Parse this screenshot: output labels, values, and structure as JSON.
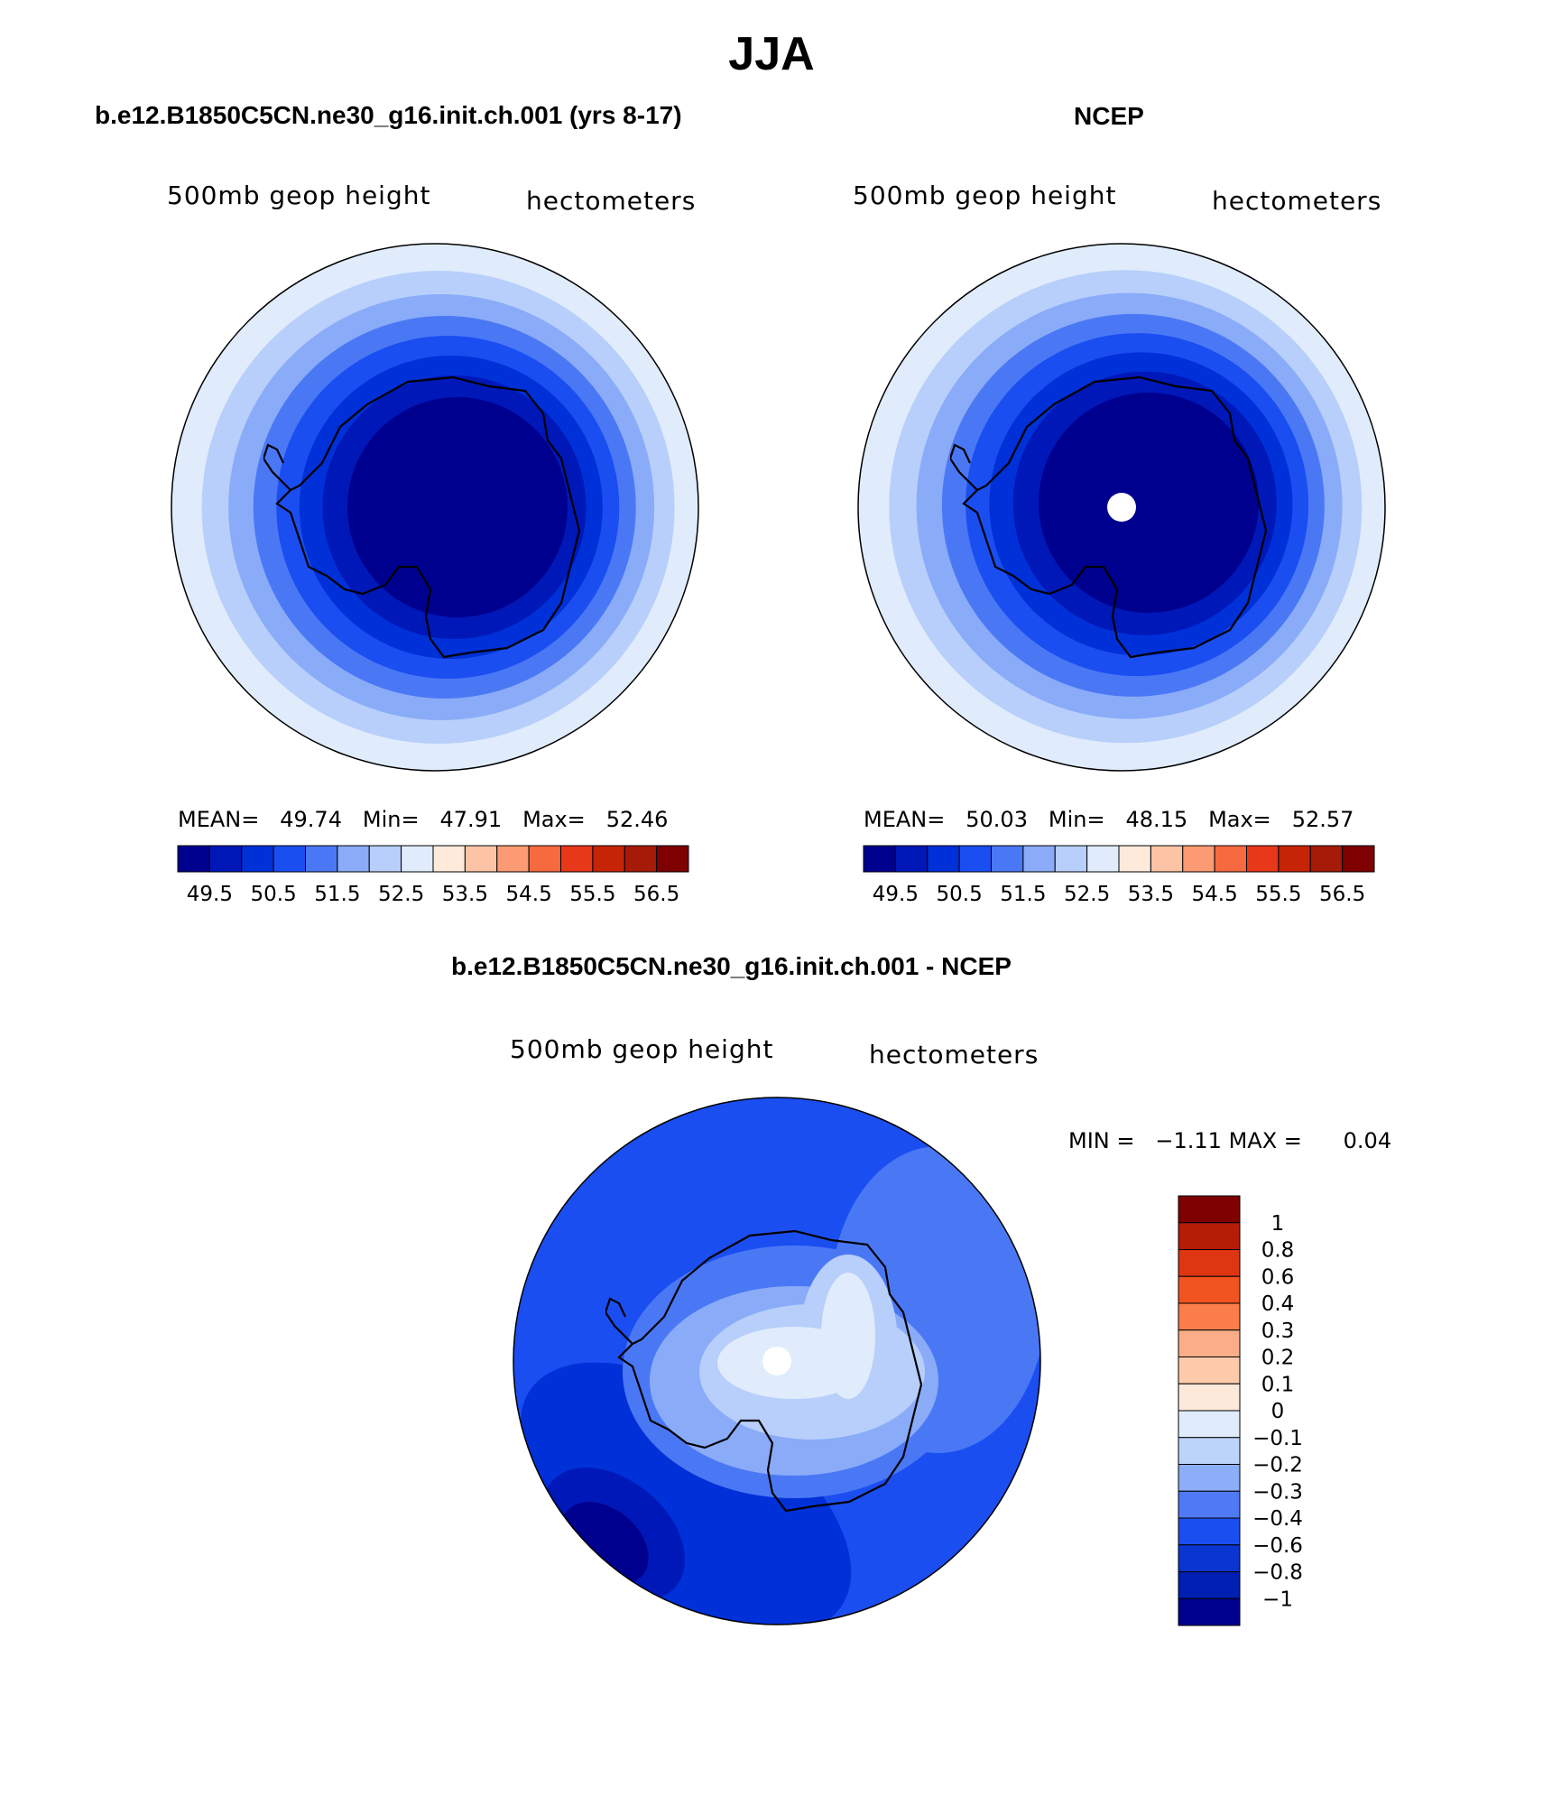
{
  "page_title": "JJA",
  "panels": [
    {
      "title": "b.e12.B1850C5CN.ne30_g16.init.ch.001 (yrs 8-17)",
      "left_label": "500mb geop height",
      "right_label": "hectometers",
      "stats": {
        "mean_label": "MEAN=",
        "mean": "49.74",
        "min_label": "Min=",
        "min": "47.91",
        "max_label": "Max=",
        "max": "52.46"
      }
    },
    {
      "title": "NCEP",
      "left_label": "500mb geop height",
      "right_label": "hectometers",
      "stats": {
        "mean_label": "MEAN=",
        "mean": "50.03",
        "min_label": "Min=",
        "min": "48.15",
        "max_label": "Max=",
        "max": "52.57"
      }
    },
    {
      "title": "b.e12.B1850C5CN.ne30_g16.init.ch.001 - NCEP",
      "left_label": "500mb geop height",
      "right_label": "hectometers",
      "stats": {
        "min_label": "MIN =",
        "min": "−1.11",
        "max_label": "MAX =",
        "max": "0.04"
      }
    }
  ],
  "colorbar_main": {
    "colors": [
      "#00008f",
      "#0018b8",
      "#0030d8",
      "#1b4ef0",
      "#4a78f5",
      "#8aabf8",
      "#b7cffa",
      "#e0ecfc",
      "#feeadb",
      "#fcc4a4",
      "#fb9a73",
      "#f76a3f",
      "#e8381a",
      "#c62407",
      "#a51b08",
      "#7e0000"
    ],
    "tick_labels": [
      "49.5",
      "50.5",
      "51.5",
      "52.5",
      "53.5",
      "54.5",
      "55.5",
      "56.5"
    ]
  },
  "colorbar_diff": {
    "colors": [
      "#7e0000",
      "#b51d06",
      "#de3512",
      "#f2541f",
      "#fb7e4a",
      "#fbad88",
      "#fdcbac",
      "#fde9da",
      "#e0ecfc",
      "#bcd3fa",
      "#8caef8",
      "#4f7af5",
      "#1b4ef0",
      "#0a35d0",
      "#001eb2",
      "#00008f"
    ],
    "tick_labels": [
      "1",
      "0.8",
      "0.6",
      "0.4",
      "0.3",
      "0.2",
      "0.1",
      "0",
      "−0.1",
      "−0.2",
      "−0.3",
      "−0.4",
      "−0.6",
      "−0.8",
      "−1"
    ]
  },
  "map_colors": {
    "ring_model": [
      "#e0ecfc",
      "#b7cffa",
      "#8aabf8",
      "#4a78f5",
      "#1b4ef0",
      "#0030d8",
      "#0018b8",
      "#00008f"
    ],
    "ring_ncep": [
      "#e0ecfc",
      "#b7cffa",
      "#8aabf8",
      "#4a78f5",
      "#1b4ef0",
      "#0030d8",
      "#0018b8",
      "#00008f"
    ],
    "diff": [
      "#0018b8",
      "#0030d8",
      "#1b4ef0",
      "#4a78f5",
      "#8aabf8",
      "#b7cffa",
      "#e0ecfc",
      "#00008f"
    ],
    "missing": "#ffffff",
    "coast": "#000000"
  }
}
